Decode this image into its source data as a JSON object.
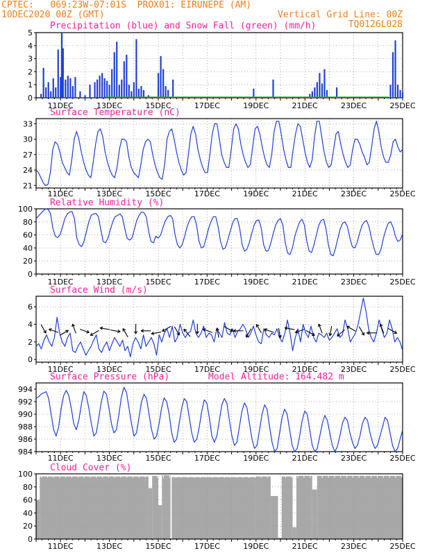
{
  "header": {
    "center": "CPTEC:",
    "coords": "069:23W-07:01S",
    "station": "PROX01: EIRUNEPE (AM)",
    "run": "10DEC2020 00Z (GMT)",
    "grid": "Vertical Grid Line: 00Z",
    "code": "TQ0126L028"
  },
  "dates": [
    "11DEC",
    "13DEC",
    "15DEC",
    "17DEC",
    "19DEC",
    "21DEC",
    "23DEC",
    "25DEC"
  ],
  "colors": {
    "header": "#f0801a",
    "title": "#ff1f9a",
    "line": "#1f3fd6",
    "snow": "#19b419",
    "cloud": "#a8a8a8"
  },
  "chart_data": [
    {
      "type": "bar",
      "title": "Precipitation (blue) and Snow Fall (green) (mm/h)",
      "ylim": [
        0,
        5
      ],
      "yticks": [
        0,
        1,
        2,
        3,
        4,
        5
      ],
      "xlim_days": [
        10,
        25
      ],
      "series": [
        {
          "name": "Precipitation",
          "x": [
            10.2,
            10.3,
            10.4,
            10.5,
            10.6,
            10.7,
            10.8,
            10.9,
            11.0,
            11.05,
            11.1,
            11.2,
            11.3,
            11.4,
            11.5,
            11.6,
            11.8,
            12.0,
            12.2,
            12.4,
            12.5,
            12.6,
            12.7,
            12.8,
            12.9,
            13.0,
            13.1,
            13.2,
            13.3,
            13.4,
            13.5,
            13.6,
            13.7,
            13.8,
            13.9,
            14.0,
            14.1,
            14.2,
            14.3,
            14.4,
            14.6,
            15.0,
            15.1,
            15.2,
            15.3,
            15.4,
            15.6,
            18.9,
            19.7,
            21.2,
            21.3,
            21.4,
            21.5,
            21.6,
            21.7,
            21.8,
            21.9,
            22.3,
            24.5,
            24.6,
            24.7,
            24.8,
            24.9,
            25.0
          ],
          "values": [
            0.3,
            2.3,
            0.8,
            1.2,
            0.5,
            1.5,
            0.8,
            3.7,
            1.6,
            5.0,
            3.8,
            1.4,
            1.7,
            1.5,
            0.9,
            1.6,
            0.5,
            0.2,
            1.0,
            1.2,
            1.4,
            1.7,
            1.9,
            1.5,
            1.3,
            1.0,
            2.2,
            3.5,
            4.3,
            1.0,
            1.4,
            2.8,
            3.3,
            1.0,
            0.5,
            1.2,
            4.5,
            0.7,
            0.9,
            0.6,
            0.2,
            1.9,
            3.2,
            2.2,
            0.9,
            0.6,
            1.4,
            0.7,
            1.4,
            0.3,
            0.5,
            0.8,
            1.2,
            1.9,
            1.1,
            2.2,
            0.6,
            0.8,
            1.0,
            3.5,
            4.4,
            1.0,
            0.6,
            0.4
          ]
        },
        {
          "name": "Snow Fall",
          "x": [],
          "values": []
        }
      ]
    },
    {
      "type": "line",
      "title": "Surface Temperature (nC)",
      "ylim": [
        20.5,
        34
      ],
      "yticks": [
        21,
        24,
        27,
        30,
        33
      ],
      "xlim_days": [
        10,
        25
      ],
      "x_hours_step": 3,
      "series": [
        {
          "name": "Temperature",
          "values": [
            24,
            23.5,
            22.5,
            21.5,
            21,
            21.2,
            23.5,
            28,
            29.5,
            29,
            27.5,
            25.5,
            24.5,
            23.5,
            23,
            26,
            30,
            31.5,
            30,
            27.5,
            25.5,
            24,
            23,
            22.5,
            25.5,
            29,
            31.5,
            32,
            30.5,
            27.5,
            25.5,
            24,
            23,
            22.5,
            24.5,
            28,
            30,
            30,
            29.5,
            26.5,
            24.5,
            23.5,
            23,
            22.5,
            25,
            28,
            29.5,
            30,
            29.5,
            27,
            25,
            23.5,
            22.5,
            22.2,
            25,
            30,
            31.5,
            32,
            30,
            27.5,
            25.5,
            24,
            23,
            23.5,
            27,
            31,
            32.5,
            31,
            28,
            26,
            24.5,
            23.5,
            23.5,
            27,
            31,
            33,
            33,
            30,
            27,
            25.5,
            24.5,
            24.5,
            28,
            32,
            33,
            32,
            29,
            27,
            25.5,
            24.5,
            25,
            28.5,
            32,
            32.5,
            31,
            28.5,
            26.5,
            25,
            24.5,
            27,
            31.5,
            33.5,
            33.5,
            31,
            28,
            26,
            24.5,
            24.5,
            28,
            31,
            33,
            32.5,
            30,
            27.5,
            25.5,
            24.5,
            26,
            30.5,
            33.5,
            33.5,
            30.5,
            27.5,
            25.5,
            24.5,
            25,
            28,
            31,
            31.5,
            29,
            27,
            25.5,
            24.5,
            25,
            28,
            30,
            30,
            29,
            27.5,
            26.5,
            25,
            25.5,
            28.5,
            32,
            33.5,
            31.5,
            28.5,
            26.5,
            25.5,
            25.5,
            27,
            29.5,
            30,
            28.5,
            27.5,
            28
          ]
        }
      ]
    },
    {
      "type": "line",
      "title": "Relative Humidity (%)",
      "ylim": [
        0,
        100
      ],
      "yticks": [
        0,
        20,
        40,
        60,
        80,
        100
      ],
      "xlim_days": [
        10,
        25
      ],
      "x_hours_step": 3,
      "series": [
        {
          "name": "Relative Humidity",
          "values": [
            85,
            89,
            93,
            97,
            100,
            99,
            93,
            70,
            58,
            56,
            60,
            72,
            85,
            92,
            95,
            96,
            85,
            55,
            45,
            42,
            50,
            65,
            80,
            90,
            92,
            93,
            88,
            68,
            50,
            48,
            55,
            68,
            80,
            88,
            90,
            92,
            88,
            70,
            55,
            52,
            55,
            68,
            82,
            90,
            95,
            94,
            88,
            65,
            50,
            48,
            58,
            55,
            60,
            72,
            82,
            88,
            90,
            85,
            60,
            45,
            40,
            45,
            58,
            72,
            82,
            88,
            88,
            75,
            50,
            40,
            42,
            55,
            70,
            80,
            88,
            88,
            72,
            50,
            38,
            40,
            52,
            65,
            78,
            85,
            85,
            70,
            45,
            35,
            38,
            48,
            62,
            75,
            82,
            83,
            70,
            45,
            35,
            36,
            48,
            62,
            75,
            82,
            85,
            75,
            48,
            32,
            30,
            40,
            58,
            70,
            80,
            84,
            75,
            50,
            35,
            33,
            45,
            60,
            75,
            82,
            84,
            70,
            45,
            30,
            28,
            40,
            55,
            70,
            78,
            80,
            72,
            55,
            42,
            40,
            48,
            62,
            74,
            80,
            82,
            72,
            55,
            40,
            30,
            30,
            38,
            55,
            68,
            78,
            80,
            72,
            58,
            50,
            52,
            62
          ],
          "unit_note": ""
        }
      ]
    },
    {
      "type": "line",
      "title": "Surface Wind (m/s)",
      "ylim": [
        -0.3,
        7.2
      ],
      "yticks": [
        0,
        2,
        4,
        6
      ],
      "xlim_days": [
        10,
        25
      ],
      "x_hours_step": 3,
      "series": [
        {
          "name": "Wind speed",
          "values": [
            1.5,
            1.8,
            1.2,
            2.2,
            2.8,
            2.0,
            1.5,
            2.5,
            4.8,
            3.0,
            2.0,
            1.5,
            2.5,
            3.0,
            1.0,
            0.8,
            1.5,
            2.0,
            1.2,
            0.5,
            1.0,
            1.5,
            2.2,
            2.8,
            1.2,
            0.8,
            1.5,
            2.0,
            1.0,
            1.8,
            2.5,
            2.0,
            1.5,
            2.2,
            1.0,
            1.5,
            0.3,
            1.8,
            2.5,
            2.0,
            1.2,
            2.8,
            1.5,
            2.0,
            2.5,
            1.8,
            0.5,
            2.8,
            2.0,
            3.0,
            3.5,
            2.5,
            3.8,
            2.0,
            2.5,
            4.0,
            3.0,
            2.5,
            3.0,
            3.2,
            4.5,
            3.0,
            2.5,
            3.0,
            3.8,
            2.5,
            3.0,
            2.8,
            2.0,
            3.5,
            3.0,
            2.5,
            4.2,
            3.0,
            2.8,
            3.5,
            2.5,
            3.2,
            3.5,
            4.0,
            3.5,
            2.5,
            3.0,
            3.8,
            2.8,
            2.0,
            1.8,
            3.5,
            2.8,
            2.5,
            3.0,
            2.8,
            3.5,
            2.5,
            2.0,
            3.0,
            4.5,
            3.0,
            1.0,
            2.5,
            3.5,
            2.0,
            4.0,
            3.0,
            2.5,
            3.8,
            2.5,
            2.0,
            3.0,
            2.8,
            2.5,
            3.0,
            2.2,
            2.5,
            3.0,
            3.5,
            2.5,
            2.8,
            4.5,
            3.5,
            2.0,
            2.5,
            3.0,
            4.0,
            5.5,
            7.0,
            5.5,
            3.5,
            2.5,
            2.0,
            3.0,
            4.5,
            3.5,
            2.5,
            3.0,
            4.5,
            3.5,
            2.0,
            2.5,
            2.0,
            1.0
          ]
        }
      ]
    },
    {
      "type": "line",
      "title": "Surface Pressure (hPa)",
      "annotation": "Model Altitude: 164.482 m",
      "ylim": [
        984,
        995
      ],
      "yticks": [
        984,
        986,
        988,
        990,
        992,
        994
      ],
      "xlim_days": [
        10,
        25
      ],
      "x_hours_step": 3,
      "series": [
        {
          "name": "Pressure",
          "values": [
            992.5,
            992.8,
            993.2,
            993.4,
            993.6,
            992.5,
            990,
            987.5,
            986.5,
            988,
            991,
            993,
            993.8,
            993,
            991,
            988.5,
            987.5,
            989,
            991.5,
            993.6,
            993,
            991,
            988.5,
            986.5,
            987,
            989.5,
            992,
            993.7,
            993.2,
            991,
            988.5,
            987,
            987.5,
            990,
            992.8,
            994.3,
            993.5,
            991,
            988.5,
            986.5,
            987,
            989.5,
            992,
            993.2,
            992.5,
            990,
            987.5,
            986,
            986.5,
            988.5,
            991,
            992.6,
            992,
            990,
            987,
            985.5,
            986,
            988.5,
            991,
            992.5,
            992,
            989.5,
            987,
            985.5,
            986,
            988,
            990.5,
            992.3,
            991.8,
            989.5,
            986.5,
            985.5,
            986.5,
            989,
            991.5,
            992.5,
            991.8,
            989,
            986.5,
            985,
            985.5,
            988,
            990.5,
            991.8,
            991,
            988.5,
            986,
            984.5,
            985,
            987.5,
            990,
            991.5,
            990.8,
            988,
            985.5,
            984,
            984.5,
            987,
            989.5,
            990.8,
            990,
            987.5,
            985,
            984,
            984.5,
            986.5,
            989,
            990.5,
            990,
            987.5,
            985,
            984,
            984.5,
            986.5,
            988.5,
            989.8,
            989,
            987,
            985,
            984,
            984.8,
            986.5,
            988.5,
            989.5,
            989,
            987,
            985.5,
            984.5,
            985,
            986.5,
            988.5,
            989.5,
            989,
            987,
            985.5,
            984.5,
            985,
            986.5,
            988,
            989.5,
            989,
            987,
            985,
            984,
            984.5,
            986,
            987.5
          ]
        }
      ]
    },
    {
      "type": "bar",
      "title": "Cloud Cover (%)",
      "ylim": [
        0,
        100
      ],
      "yticks": [
        0,
        20,
        40,
        60,
        80,
        100
      ],
      "xlim_days": [
        10,
        25
      ],
      "series": [
        {
          "name": "Cloud cover",
          "segments": [
            {
              "from": 10.0,
              "to": 10.15,
              "value": 60
            },
            {
              "from": 10.15,
              "to": 14.6,
              "value": 96
            },
            {
              "from": 14.6,
              "to": 14.75,
              "value": 78
            },
            {
              "from": 14.75,
              "to": 15.0,
              "value": 97
            },
            {
              "from": 15.0,
              "to": 15.15,
              "value": 52
            },
            {
              "from": 15.15,
              "to": 15.5,
              "value": 98
            },
            {
              "from": 15.5,
              "to": 15.55,
              "value": 0
            },
            {
              "from": 15.55,
              "to": 19.0,
              "value": 95
            },
            {
              "from": 19.0,
              "to": 19.6,
              "value": 96
            },
            {
              "from": 19.6,
              "to": 19.9,
              "value": 66
            },
            {
              "from": 19.9,
              "to": 20.05,
              "value": 2
            },
            {
              "from": 20.05,
              "to": 20.5,
              "value": 96
            },
            {
              "from": 20.5,
              "to": 20.65,
              "value": 18
            },
            {
              "from": 20.65,
              "to": 21.3,
              "value": 97
            },
            {
              "from": 21.3,
              "to": 21.5,
              "value": 76
            },
            {
              "from": 21.5,
              "to": 25.0,
              "value": 97
            }
          ]
        }
      ]
    }
  ]
}
